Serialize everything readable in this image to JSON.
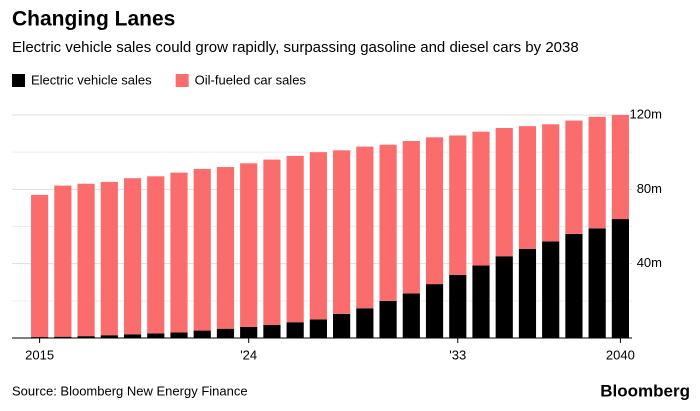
{
  "chart_data": {
    "type": "stacked-bar",
    "title": "Changing Lanes",
    "subtitle": "Electric vehicle sales could grow rapidly, surpassing gasoline and diesel cars by 2038",
    "source": "Source: Bloomberg New Energy Finance",
    "brand": "Bloomberg",
    "categories": [
      "2015",
      null,
      null,
      null,
      null,
      null,
      null,
      null,
      null,
      "'24",
      null,
      null,
      null,
      null,
      null,
      null,
      null,
      null,
      "'33",
      null,
      null,
      null,
      null,
      null,
      null,
      "2040"
    ],
    "series": [
      {
        "name": "Electric vehicle sales",
        "color": "#000000",
        "values": [
          0.5,
          0.7,
          1,
          1.5,
          2,
          2.5,
          3,
          4,
          5,
          6,
          7,
          8.5,
          10,
          13,
          16,
          20,
          24,
          29,
          34,
          39,
          44,
          48,
          52,
          56,
          59,
          64
        ]
      },
      {
        "name": "Oil-fueled car sales",
        "color": "#fb6d6d",
        "values": [
          76.5,
          81.3,
          82,
          82.5,
          84,
          84.5,
          86,
          87,
          87,
          88,
          89,
          89.5,
          90,
          88,
          87,
          84,
          82,
          79,
          75,
          72,
          69,
          66,
          63,
          61,
          60,
          56
        ]
      }
    ],
    "ylim": [
      0,
      120
    ],
    "yticks": [
      {
        "value": 40,
        "label": "40m"
      },
      {
        "value": 80,
        "label": "80m"
      },
      {
        "value": 120,
        "label": "120m"
      }
    ],
    "grid": true
  }
}
